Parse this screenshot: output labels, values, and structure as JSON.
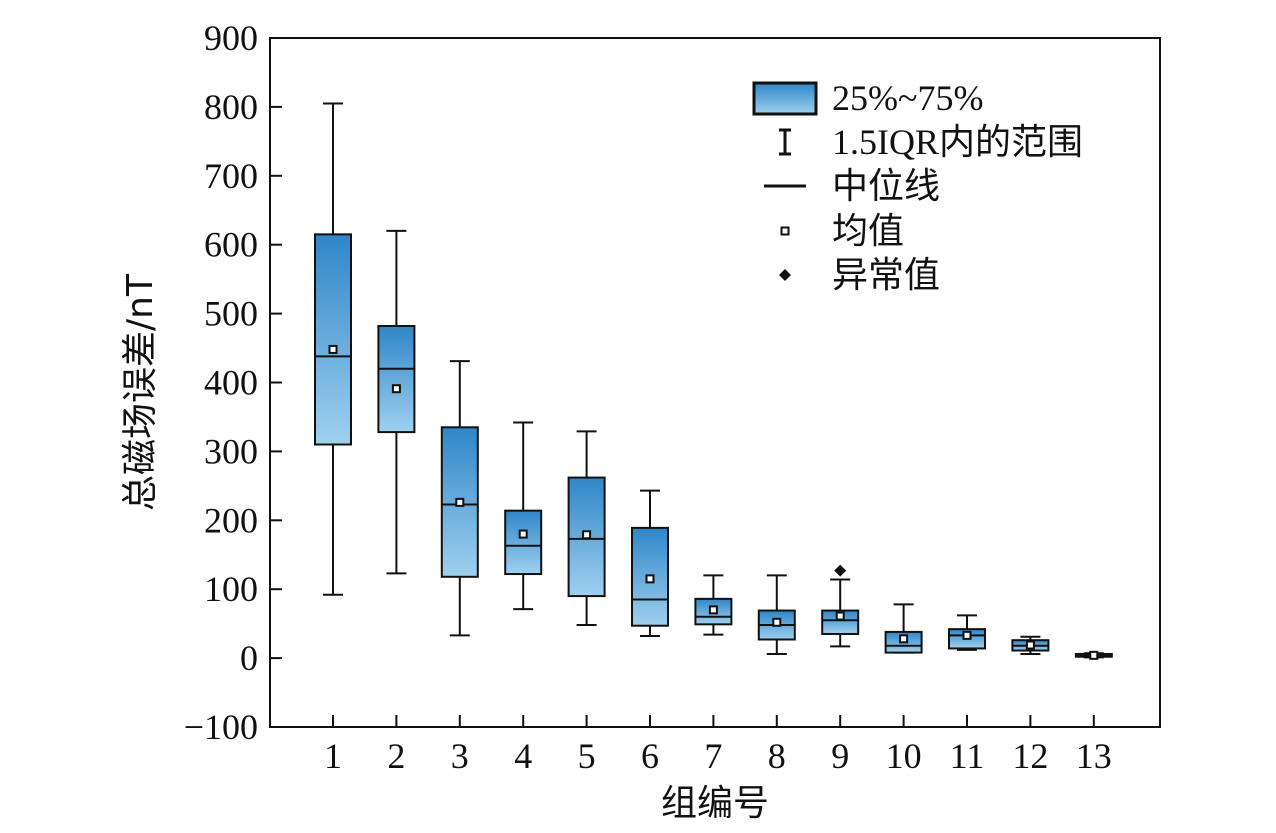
{
  "chart_data": {
    "type": "boxplot",
    "xlabel": "组编号",
    "ylabel": "总磁场误差/nT",
    "ylim": [
      -100,
      900
    ],
    "yticks": [
      -100,
      0,
      100,
      200,
      300,
      400,
      500,
      600,
      700,
      800,
      900
    ],
    "y_tick_labels": [
      "−100",
      "0",
      "100",
      "200",
      "300",
      "400",
      "500",
      "600",
      "700",
      "800",
      "900"
    ],
    "categories": [
      "1",
      "2",
      "3",
      "4",
      "5",
      "6",
      "7",
      "8",
      "9",
      "10",
      "11",
      "12",
      "13"
    ],
    "boxes": [
      {
        "whisker_low": 92,
        "q1": 310,
        "median": 438,
        "q3": 615,
        "whisker_high": 805,
        "mean": 448,
        "outliers": []
      },
      {
        "whisker_low": 123,
        "q1": 328,
        "median": 420,
        "q3": 482,
        "whisker_high": 620,
        "mean": 391,
        "outliers": []
      },
      {
        "whisker_low": 33,
        "q1": 118,
        "median": 223,
        "q3": 335,
        "whisker_high": 431,
        "mean": 226,
        "outliers": []
      },
      {
        "whisker_low": 71,
        "q1": 122,
        "median": 163,
        "q3": 214,
        "whisker_high": 342,
        "mean": 180,
        "outliers": []
      },
      {
        "whisker_low": 48,
        "q1": 90,
        "median": 173,
        "q3": 262,
        "whisker_high": 329,
        "mean": 179,
        "outliers": []
      },
      {
        "whisker_low": 32,
        "q1": 47,
        "median": 85,
        "q3": 189,
        "whisker_high": 243,
        "mean": 115,
        "outliers": []
      },
      {
        "whisker_low": 34,
        "q1": 49,
        "median": 60,
        "q3": 86,
        "whisker_high": 120,
        "mean": 70,
        "outliers": []
      },
      {
        "whisker_low": 6,
        "q1": 27,
        "median": 48,
        "q3": 69,
        "whisker_high": 120,
        "mean": 52,
        "outliers": []
      },
      {
        "whisker_low": 17,
        "q1": 35,
        "median": 55,
        "q3": 69,
        "whisker_high": 114,
        "mean": 61,
        "outliers": [
          127
        ]
      },
      {
        "whisker_low": 8,
        "q1": 8,
        "median": 18,
        "q3": 38,
        "whisker_high": 78,
        "mean": 28,
        "outliers": []
      },
      {
        "whisker_low": 12,
        "q1": 14,
        "median": 33,
        "q3": 42,
        "whisker_high": 62,
        "mean": 33,
        "outliers": []
      },
      {
        "whisker_low": 6,
        "q1": 11,
        "median": 18,
        "q3": 26,
        "whisker_high": 31,
        "mean": 19,
        "outliers": []
      },
      {
        "whisker_low": 1,
        "q1": 2,
        "median": 3,
        "q3": 6,
        "whisker_high": 7,
        "mean": 4,
        "outliers": []
      }
    ],
    "legend": {
      "placement": "top-right",
      "items": [
        {
          "key": "box",
          "label": "25%~75%"
        },
        {
          "key": "whisker",
          "label": "1.5IQR内的范围"
        },
        {
          "key": "median",
          "label": "中位线"
        },
        {
          "key": "mean",
          "label": "均值"
        },
        {
          "key": "outlier",
          "label": "异常值"
        }
      ]
    },
    "colors": {
      "box_top": "#2f86c8",
      "box_bottom": "#9fd0ef",
      "stroke": "#111111"
    }
  }
}
